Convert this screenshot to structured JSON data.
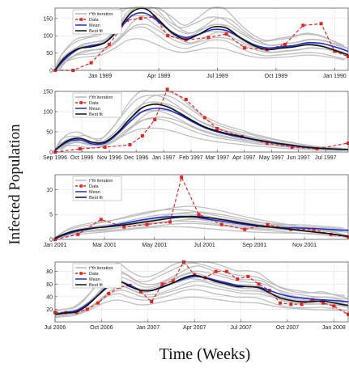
{
  "ylabel": "Infected Population",
  "xlabel": "Time (Weeks)",
  "legend": [
    "i^th iteration",
    "Data",
    "Mean",
    "Best fit"
  ],
  "colors": {
    "iteration": "#b9b9b9",
    "data": "#e8231f",
    "mean": "#1f2fd0",
    "best": "#111111",
    "grid": "#e4e4e4"
  },
  "chart_data": [
    {
      "type": "line",
      "ylim": [
        0,
        180
      ],
      "yticks": [
        0,
        50,
        100,
        150
      ],
      "xticks": [
        "Jan 1989",
        "Apr 1989",
        "Jul 1989",
        "Oct 1989",
        "Jan 1990"
      ],
      "xtick_pos": [
        2,
        15,
        28,
        41,
        54
      ],
      "xrange": [
        -8,
        57
      ],
      "series": [
        {
          "name": "Data",
          "x": [
            -8,
            -4,
            0,
            4,
            8,
            11,
            14,
            17,
            21,
            26,
            30,
            34,
            39,
            43,
            47,
            51,
            54,
            57
          ],
          "y": [
            0,
            0,
            22,
            75,
            145,
            150,
            155,
            100,
            88,
            95,
            105,
            65,
            60,
            75,
            130,
            135,
            55,
            40
          ]
        },
        {
          "name": "Mean",
          "x": [
            -8,
            -6,
            -3,
            0,
            3,
            6,
            9,
            12,
            15,
            18,
            21,
            24,
            27,
            30,
            33,
            36,
            39,
            42,
            45,
            48,
            51,
            54,
            57
          ],
          "y": [
            0,
            30,
            60,
            72,
            80,
            115,
            158,
            165,
            140,
            110,
            95,
            105,
            118,
            115,
            95,
            75,
            65,
            68,
            72,
            80,
            78,
            68,
            55
          ]
        },
        {
          "name": "Best fit",
          "x": [
            -8,
            -6,
            -3,
            0,
            3,
            6,
            9,
            12,
            15,
            18,
            21,
            24,
            27,
            30,
            33,
            36,
            39,
            42,
            45,
            48,
            51,
            54,
            57
          ],
          "y": [
            0,
            35,
            62,
            68,
            80,
            118,
            168,
            178,
            145,
            108,
            90,
            105,
            125,
            122,
            95,
            72,
            60,
            64,
            68,
            74,
            70,
            58,
            45
          ]
        }
      ]
    },
    {
      "type": "line",
      "ylim": [
        0,
        150
      ],
      "yticks": [
        0,
        50,
        100,
        150
      ],
      "xticks": [
        "Sep 1996",
        "Oct 1996",
        "Nov 1996",
        "Dec 1996",
        "Jan 1997",
        "Feb 1997",
        "Mar 1997",
        "Apr 1997",
        "May 1997",
        "Jun 1997",
        "Jul 1997"
      ],
      "xtick_pos": [
        0,
        4.3,
        8.7,
        13,
        17.4,
        21.8,
        26,
        30.3,
        34.7,
        39,
        43.4
      ],
      "xrange": [
        0,
        47
      ],
      "series": [
        {
          "name": "Data",
          "x": [
            0,
            4,
            8,
            12,
            14,
            16,
            18,
            21,
            24,
            26,
            30,
            34,
            38,
            42,
            47
          ],
          "y": [
            0,
            8,
            12,
            18,
            40,
            80,
            155,
            130,
            85,
            58,
            38,
            22,
            12,
            8,
            22
          ]
        },
        {
          "name": "Mean",
          "x": [
            0,
            2,
            4,
            6,
            8,
            10,
            12,
            14,
            16,
            18,
            20,
            22,
            24,
            26,
            28,
            30,
            32,
            34,
            36,
            38,
            40,
            42,
            44,
            47
          ],
          "y": [
            5,
            25,
            30,
            20,
            22,
            45,
            75,
            100,
            108,
            105,
            92,
            75,
            60,
            50,
            42,
            36,
            30,
            25,
            20,
            16,
            12,
            10,
            8,
            6
          ]
        },
        {
          "name": "Best fit",
          "x": [
            0,
            2,
            4,
            6,
            8,
            10,
            12,
            14,
            16,
            18,
            20,
            22,
            24,
            26,
            28,
            30,
            32,
            34,
            36,
            38,
            40,
            42,
            44,
            47
          ],
          "y": [
            5,
            28,
            34,
            24,
            25,
            48,
            82,
            110,
            118,
            112,
            96,
            78,
            62,
            52,
            44,
            38,
            31,
            26,
            21,
            17,
            13,
            10,
            8,
            6
          ]
        }
      ]
    },
    {
      "type": "line",
      "ylim": [
        0,
        13
      ],
      "yticks": [
        0,
        5,
        10
      ],
      "xticks": [
        "Jan 2001",
        "Mar 2001",
        "May 2001",
        "Jul 2001",
        "Sep 2001",
        "Nov 2001"
      ],
      "xtick_pos": [
        0,
        8.6,
        17.3,
        26,
        34.7,
        43.4
      ],
      "xrange": [
        0,
        51
      ],
      "series": [
        {
          "name": "Data",
          "x": [
            0,
            4,
            8,
            12,
            16,
            20,
            22,
            25,
            29,
            33,
            37,
            41,
            45,
            48,
            51
          ],
          "y": [
            0,
            1,
            4,
            2.5,
            3,
            3.5,
            12.5,
            5,
            3,
            2,
            3,
            2,
            2,
            1,
            0.5
          ]
        },
        {
          "name": "Mean",
          "x": [
            0,
            3,
            6,
            9,
            12,
            15,
            18,
            21,
            24,
            27,
            30,
            33,
            36,
            39,
            42,
            45,
            48,
            51
          ],
          "y": [
            0.2,
            1.4,
            2.1,
            2.6,
            3.2,
            3.9,
            4.4,
            4.6,
            4.5,
            4.0,
            3.5,
            3.0,
            2.6,
            2.4,
            2.3,
            2.2,
            2.0,
            1.8
          ]
        },
        {
          "name": "Best fit",
          "x": [
            0,
            3,
            6,
            9,
            12,
            15,
            18,
            21,
            24,
            27,
            30,
            33,
            36,
            39,
            42,
            45,
            48,
            51
          ],
          "y": [
            0.3,
            1.6,
            2.2,
            2.5,
            2.9,
            3.4,
            3.9,
            4.4,
            4.6,
            4.3,
            3.8,
            3.2,
            2.7,
            2.3,
            1.9,
            1.5,
            1.1,
            0.6
          ]
        }
      ]
    },
    {
      "type": "line",
      "ylim": [
        0,
        95
      ],
      "yticks": [
        20,
        40,
        60,
        80
      ],
      "xticks": [
        "Jul 2006",
        "Oct 2006",
        "Jan 2007",
        "Apr 2007",
        "Jul 2007",
        "Oct 2007",
        "Jan 2008"
      ],
      "xtick_pos": [
        0,
        13,
        26,
        39,
        52,
        65,
        78
      ],
      "xrange": [
        0,
        82
      ],
      "series": [
        {
          "name": "Data",
          "x": [
            0,
            3,
            6,
            9,
            12,
            15,
            18,
            21,
            24,
            27,
            30,
            33,
            36,
            39,
            42,
            45,
            48,
            51,
            54,
            57,
            60,
            63,
            66,
            69,
            72,
            75,
            78,
            82
          ],
          "y": [
            15,
            15,
            15,
            20,
            30,
            45,
            55,
            58,
            48,
            32,
            60,
            65,
            95,
            75,
            70,
            80,
            80,
            68,
            72,
            60,
            50,
            30,
            28,
            28,
            35,
            30,
            25,
            12
          ]
        },
        {
          "name": "Mean",
          "x": [
            0,
            3,
            6,
            9,
            12,
            15,
            18,
            21,
            24,
            27,
            30,
            33,
            36,
            39,
            42,
            45,
            48,
            51,
            54,
            57,
            60,
            63,
            66,
            69,
            72,
            75,
            78,
            82
          ],
          "y": [
            12,
            15,
            18,
            28,
            42,
            56,
            63,
            58,
            50,
            50,
            56,
            62,
            68,
            72,
            70,
            66,
            62,
            58,
            56,
            55,
            50,
            44,
            40,
            38,
            36,
            35,
            34,
            32
          ]
        },
        {
          "name": "Best fit",
          "x": [
            0,
            3,
            6,
            9,
            12,
            15,
            18,
            21,
            24,
            27,
            30,
            33,
            36,
            39,
            42,
            45,
            48,
            51,
            54,
            57,
            60,
            63,
            66,
            69,
            72,
            75,
            78,
            82
          ],
          "y": [
            12,
            14,
            16,
            26,
            42,
            58,
            64,
            56,
            50,
            50,
            55,
            62,
            70,
            74,
            70,
            64,
            60,
            56,
            56,
            54,
            46,
            38,
            34,
            32,
            32,
            33,
            30,
            26
          ]
        }
      ]
    }
  ]
}
